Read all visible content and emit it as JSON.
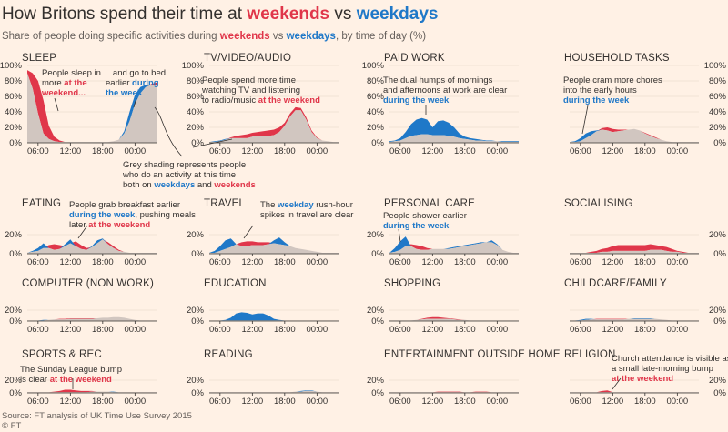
{
  "title": {
    "prefix": "How Britons spend their time at ",
    "weekends": "weekends",
    "vs": " vs ",
    "weekdays": "weekdays"
  },
  "subtitle": {
    "prefix": "Share of people doing specific activities during ",
    "weekends": "weekends",
    "vs": " vs ",
    "weekdays": "weekdays",
    "suffix": ", by time of day (%)"
  },
  "source": "Source: FT analysis of UK Time Use Survey 2015",
  "credit": "© FT",
  "colors": {
    "weekend": "#e0364a",
    "weekday": "#1f78c8",
    "both": "#d1c6c0",
    "background": "#fff1e5",
    "axis": "#33302e"
  },
  "chart_data": {
    "type": "area",
    "x_ticks": [
      "06:00",
      "12:00",
      "18:00",
      "00:00"
    ],
    "y_ticks_large": [
      "100%",
      "80%",
      "60%",
      "40%",
      "20%",
      "0%"
    ],
    "y_ticks_small": [
      "20%",
      "0%"
    ],
    "series_legend": [
      "weekdays",
      "weekends",
      "both"
    ],
    "x_hours": [
      4,
      5,
      6,
      7,
      8,
      9,
      10,
      11,
      12,
      13,
      14,
      15,
      16,
      17,
      18,
      19,
      20,
      21,
      22,
      23,
      24,
      25,
      26,
      27,
      28
    ],
    "panels": [
      {
        "title": "SLEEP",
        "ylim": [
          0,
          100
        ],
        "weekday": [
          90,
          70,
          38,
          12,
          5,
          2,
          1,
          1,
          1,
          1,
          1,
          1,
          1,
          1,
          1,
          1,
          2,
          4,
          15,
          40,
          62,
          72,
          75,
          75,
          75
        ],
        "weekend": [
          94,
          90,
          80,
          55,
          22,
          8,
          3,
          1,
          1,
          1,
          1,
          1,
          1,
          1,
          1,
          1,
          2,
          4,
          12,
          28,
          50,
          64,
          72,
          76,
          78
        ]
      },
      {
        "title": "TV/VIDEO/AUDIO",
        "ylim": [
          0,
          100
        ],
        "weekday": [
          1,
          2,
          3,
          5,
          6,
          6,
          6,
          6,
          8,
          9,
          9,
          9,
          10,
          14,
          22,
          34,
          42,
          42,
          30,
          14,
          6,
          3,
          2,
          1,
          1
        ],
        "weekend": [
          1,
          1,
          2,
          4,
          7,
          9,
          10,
          11,
          13,
          14,
          15,
          16,
          17,
          20,
          26,
          38,
          46,
          45,
          33,
          16,
          7,
          3,
          2,
          1,
          1
        ]
      },
      {
        "title": "PAID WORK",
        "ylim": [
          0,
          100
        ],
        "weekday": [
          2,
          3,
          6,
          14,
          24,
          30,
          32,
          30,
          20,
          28,
          29,
          26,
          20,
          12,
          8,
          6,
          5,
          4,
          3,
          3,
          2,
          2,
          2,
          2,
          2
        ],
        "weekend": [
          1,
          2,
          3,
          6,
          9,
          10,
          11,
          11,
          10,
          10,
          10,
          9,
          8,
          6,
          5,
          4,
          3,
          3,
          2,
          2,
          2,
          1,
          1,
          1,
          1
        ]
      },
      {
        "title": "HOUSEHOLD TASKS",
        "ylim": [
          0,
          100
        ],
        "weekday": [
          1,
          2,
          6,
          12,
          15,
          16,
          17,
          16,
          14,
          15,
          16,
          17,
          18,
          16,
          12,
          9,
          6,
          4,
          2,
          1,
          1,
          1,
          1,
          1,
          1
        ],
        "weekend": [
          1,
          1,
          2,
          6,
          10,
          15,
          19,
          20,
          18,
          17,
          17,
          17,
          18,
          16,
          13,
          10,
          7,
          4,
          2,
          1,
          1,
          1,
          1,
          1,
          1
        ]
      },
      {
        "title": "EATING",
        "ylim": [
          0,
          20
        ],
        "weekday": [
          1,
          3,
          6,
          11,
          6,
          4,
          5,
          10,
          15,
          8,
          5,
          4,
          8,
          14,
          16,
          10,
          6,
          3,
          2,
          1,
          1,
          1,
          1,
          1,
          1
        ],
        "weekend": [
          1,
          2,
          3,
          6,
          9,
          10,
          9,
          8,
          11,
          13,
          9,
          6,
          7,
          11,
          15,
          12,
          8,
          4,
          2,
          1,
          1,
          1,
          1,
          1,
          1
        ]
      },
      {
        "title": "TRAVEL",
        "ylim": [
          0,
          20
        ],
        "weekday": [
          1,
          3,
          8,
          14,
          16,
          10,
          8,
          8,
          9,
          9,
          9,
          10,
          14,
          17,
          12,
          8,
          6,
          5,
          4,
          3,
          2,
          1,
          1,
          1,
          1
        ],
        "weekend": [
          1,
          1,
          3,
          5,
          7,
          10,
          12,
          13,
          13,
          12,
          12,
          12,
          11,
          10,
          9,
          8,
          6,
          5,
          4,
          3,
          2,
          1,
          1,
          1,
          1
        ]
      },
      {
        "title": "PERSONAL CARE",
        "ylim": [
          0,
          20
        ],
        "weekday": [
          1,
          6,
          13,
          18,
          8,
          5,
          4,
          4,
          5,
          5,
          5,
          6,
          7,
          8,
          9,
          10,
          11,
          12,
          12,
          14,
          10,
          4,
          2,
          1,
          1
        ],
        "weekend": [
          1,
          2,
          4,
          8,
          10,
          9,
          8,
          6,
          5,
          5,
          5,
          5,
          6,
          7,
          8,
          9,
          10,
          11,
          12,
          12,
          9,
          4,
          2,
          1,
          1
        ]
      },
      {
        "title": "SOCIALISING",
        "ylim": [
          0,
          20
        ],
        "weekday": [
          1,
          1,
          1,
          1,
          1,
          1,
          2,
          2,
          3,
          3,
          3,
          3,
          3,
          3,
          3,
          4,
          4,
          4,
          3,
          2,
          2,
          1,
          1,
          1,
          1
        ],
        "weekend": [
          1,
          1,
          1,
          1,
          2,
          3,
          5,
          6,
          8,
          9,
          9,
          9,
          9,
          9,
          9,
          10,
          9,
          8,
          7,
          5,
          3,
          2,
          1,
          1,
          1
        ]
      },
      {
        "title": "COMPUTER (NON WORK)",
        "ylim": [
          0,
          20
        ],
        "weekday": [
          1,
          1,
          1,
          2,
          2,
          3,
          3,
          3,
          4,
          4,
          4,
          4,
          4,
          5,
          6,
          6,
          7,
          7,
          6,
          4,
          2,
          1,
          1,
          1,
          1
        ],
        "weekend": [
          1,
          1,
          1,
          1,
          2,
          3,
          4,
          4,
          5,
          5,
          5,
          5,
          5,
          5,
          6,
          6,
          7,
          7,
          6,
          4,
          2,
          1,
          1,
          1,
          1
        ]
      },
      {
        "title": "EDUCATION",
        "ylim": [
          0,
          20
        ],
        "weekday": [
          1,
          1,
          1,
          2,
          6,
          14,
          16,
          15,
          12,
          14,
          14,
          10,
          4,
          2,
          1,
          1,
          1,
          1,
          1,
          1,
          1,
          1,
          1,
          1,
          1
        ],
        "weekend": [
          1,
          1,
          1,
          1,
          1,
          1,
          1,
          1,
          1,
          1,
          1,
          1,
          1,
          1,
          1,
          1,
          1,
          1,
          1,
          1,
          1,
          1,
          1,
          1,
          1
        ]
      },
      {
        "title": "SHOPPING",
        "ylim": [
          0,
          20
        ],
        "weekday": [
          1,
          1,
          1,
          1,
          1,
          2,
          3,
          4,
          4,
          4,
          4,
          4,
          3,
          2,
          2,
          1,
          1,
          1,
          1,
          1,
          1,
          1,
          1,
          1,
          1
        ],
        "weekend": [
          1,
          1,
          1,
          1,
          1,
          2,
          4,
          6,
          7,
          7,
          6,
          5,
          4,
          3,
          2,
          1,
          1,
          1,
          1,
          1,
          1,
          1,
          1,
          1,
          1
        ]
      },
      {
        "title": "CHILDCARE/FAMILY",
        "ylim": [
          0,
          20
        ],
        "weekday": [
          1,
          1,
          2,
          4,
          4,
          3,
          3,
          3,
          3,
          3,
          3,
          4,
          5,
          5,
          5,
          5,
          4,
          3,
          2,
          1,
          1,
          1,
          1,
          1,
          1
        ],
        "weekend": [
          1,
          1,
          1,
          2,
          3,
          4,
          4,
          4,
          4,
          4,
          4,
          4,
          4,
          4,
          4,
          4,
          4,
          3,
          2,
          1,
          1,
          1,
          1,
          1,
          1
        ]
      },
      {
        "title": "SPORTS & REC",
        "ylim": [
          0,
          20
        ],
        "weekday": [
          1,
          1,
          1,
          1,
          1,
          1,
          1,
          1,
          1,
          1,
          1,
          1,
          2,
          2,
          2,
          2,
          2,
          1,
          1,
          1,
          1,
          1,
          1,
          1,
          1
        ],
        "weekend": [
          1,
          1,
          1,
          1,
          1,
          2,
          3,
          5,
          5,
          4,
          3,
          3,
          3,
          2,
          2,
          2,
          1,
          1,
          1,
          1,
          1,
          1,
          1,
          1,
          1
        ]
      },
      {
        "title": "READING",
        "ylim": [
          0,
          20
        ],
        "weekday": [
          1,
          1,
          1,
          1,
          1,
          1,
          1,
          1,
          1,
          1,
          1,
          1,
          1,
          1,
          1,
          1,
          2,
          3,
          4,
          4,
          2,
          1,
          1,
          1,
          1
        ],
        "weekend": [
          1,
          1,
          1,
          1,
          1,
          1,
          1,
          1,
          1,
          1,
          1,
          1,
          1,
          1,
          1,
          1,
          2,
          2,
          3,
          3,
          2,
          1,
          1,
          1,
          1
        ]
      },
      {
        "title": "ENTERTAINMENT OUTSIDE HOME",
        "ylim": [
          0,
          20
        ],
        "weekday": [
          1,
          1,
          1,
          1,
          1,
          1,
          1,
          1,
          1,
          1,
          1,
          1,
          1,
          1,
          1,
          1,
          1,
          1,
          1,
          1,
          1,
          1,
          1,
          1,
          1
        ],
        "weekend": [
          1,
          1,
          1,
          1,
          1,
          1,
          1,
          1,
          1,
          2,
          2,
          2,
          2,
          2,
          1,
          1,
          2,
          2,
          2,
          1,
          1,
          1,
          1,
          1,
          1
        ]
      },
      {
        "title": "RELIGION",
        "ylim": [
          0,
          20
        ],
        "weekday": [
          1,
          1,
          1,
          1,
          1,
          1,
          1,
          1,
          1,
          1,
          1,
          1,
          1,
          1,
          1,
          1,
          1,
          1,
          1,
          1,
          1,
          1,
          1,
          1,
          1
        ],
        "weekend": [
          1,
          1,
          1,
          1,
          1,
          1,
          3,
          4,
          1,
          1,
          1,
          1,
          1,
          1,
          1,
          1,
          1,
          1,
          1,
          1,
          1,
          1,
          1,
          1,
          1
        ]
      }
    ],
    "annotations": [
      [
        {
          "t": "People sleep in"
        },
        {
          "t": "more "
        },
        {
          "t": "at the",
          "c": "r"
        },
        {
          "t": "weekend...",
          "c": "r"
        }
      ],
      [
        {
          "t": "...and go to bed"
        },
        {
          "t": "earlier "
        },
        {
          "t": "during",
          "c": "b"
        },
        {
          "t": "the week",
          "c": "b"
        }
      ],
      [
        {
          "t": "People spend more time"
        },
        {
          "t": "watching TV and listening"
        },
        {
          "t": "to radio/music "
        },
        {
          "t": "at the weekend",
          "c": "r"
        }
      ],
      [
        {
          "t": "Grey shading represents people"
        },
        {
          "t": "who do an activity at this time"
        },
        {
          "t": "both on "
        },
        {
          "t": "weekdays",
          "c": "b"
        },
        {
          "t": " and "
        },
        {
          "t": "weekends",
          "c": "r"
        }
      ],
      [
        {
          "t": "The dual humps of mornings"
        },
        {
          "t": "and afternoons at work are clear"
        },
        {
          "t": "during the week",
          "c": "b"
        }
      ],
      [
        {
          "t": "People cram more chores"
        },
        {
          "t": "into the early hours"
        },
        {
          "t": "during the week",
          "c": "b"
        }
      ],
      [
        {
          "t": "People grab breakfast earlier"
        },
        {
          "t": "during the week",
          "c": "b"
        },
        {
          "t": ", pushing meals"
        },
        {
          "t": "later "
        },
        {
          "t": "at the weekend",
          "c": "r"
        }
      ],
      [
        {
          "t": "The "
        },
        {
          "t": "weekday",
          "c": "b"
        },
        {
          "t": " rush-hour"
        },
        {
          "t": "spikes in travel are clear"
        }
      ],
      [
        {
          "t": "People shower earlier"
        },
        {
          "t": "during the week",
          "c": "b"
        }
      ],
      [
        {
          "t": "The Sunday League bump"
        },
        {
          "t": "is clear "
        },
        {
          "t": "at the weekend",
          "c": "r"
        }
      ],
      [
        {
          "t": "Church attendance is visible as"
        },
        {
          "t": "a small late-morning bump"
        },
        {
          "t": "at the weekend",
          "c": "r"
        }
      ]
    ]
  }
}
